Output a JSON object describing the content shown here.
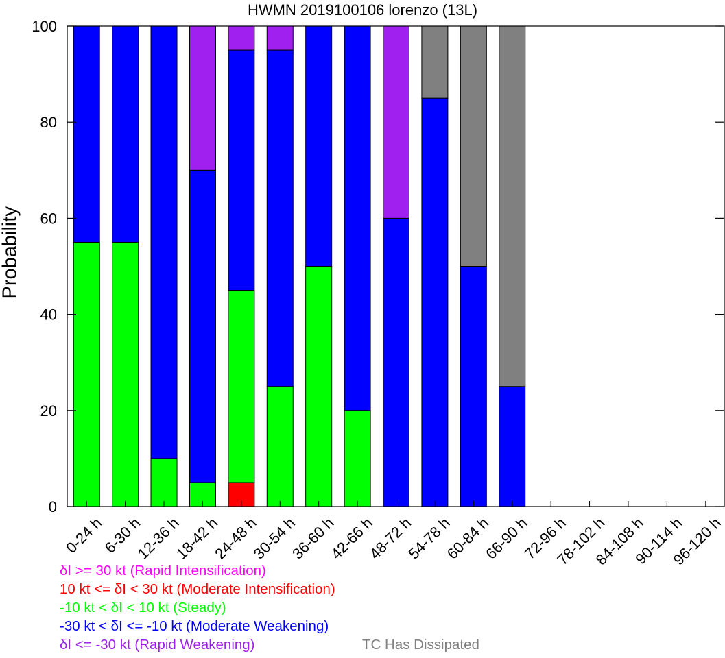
{
  "chart_data": {
    "type": "bar",
    "stacked": true,
    "title": "HWMN 2019100106 lorenzo (13L)",
    "xlabel": "",
    "ylabel": "Probability",
    "ylim": [
      0,
      100
    ],
    "yticks": [
      0,
      20,
      40,
      60,
      80,
      100
    ],
    "grid": false,
    "categories": [
      "0-24 h",
      "6-30 h",
      "12-36 h",
      "18-42 h",
      "24-48 h",
      "30-54 h",
      "36-60 h",
      "42-66 h",
      "48-72 h",
      "54-78 h",
      "60-84 h",
      "66-90 h",
      "72-96 h",
      "78-102 h",
      "84-108 h",
      "90-114 h",
      "96-120 h"
    ],
    "series": [
      {
        "name": "10 kt <= δI < 30 kt (Moderate Intensification)",
        "color": "#ff0000",
        "values": [
          0,
          0,
          0,
          0,
          5,
          0,
          0,
          0,
          0,
          0,
          0,
          0,
          0,
          0,
          0,
          0,
          0
        ]
      },
      {
        "name": "-10 kt < δI < 10 kt (Steady)",
        "color": "#00ff00",
        "values": [
          55,
          55,
          10,
          5,
          40,
          25,
          50,
          20,
          0,
          0,
          0,
          0,
          0,
          0,
          0,
          0,
          0
        ]
      },
      {
        "name": "-30 kt < δI <= -10 kt (Moderate Weakening)",
        "color": "#0000ff",
        "values": [
          45,
          45,
          90,
          65,
          50,
          70,
          50,
          80,
          60,
          85,
          50,
          25,
          0,
          0,
          0,
          0,
          0
        ]
      },
      {
        "name": "δI >= 30 kt (Rapid Intensification)",
        "color": "#ff00ff",
        "values": [
          0,
          0,
          0,
          0,
          0,
          0,
          0,
          0,
          0,
          0,
          0,
          0,
          0,
          0,
          0,
          0,
          0
        ]
      },
      {
        "name": "δI <= -30 kt (Rapid Weakening)",
        "color": "#a020f0",
        "values": [
          0,
          0,
          0,
          30,
          5,
          5,
          0,
          0,
          40,
          0,
          0,
          0,
          0,
          0,
          0,
          0,
          0
        ]
      },
      {
        "name": "TC Has Dissipated",
        "color": "#808080",
        "values": [
          0,
          0,
          0,
          0,
          0,
          0,
          0,
          0,
          0,
          15,
          50,
          75,
          0,
          0,
          0,
          0,
          0
        ]
      }
    ]
  },
  "legend": {
    "ri": {
      "text": "δI >= 30 kt (Rapid Intensification)",
      "color": "#ff00ff"
    },
    "mi": {
      "text": "10 kt <= δI < 30 kt (Moderate Intensification)",
      "color": "#ff0000"
    },
    "steady": {
      "text": "-10 kt < δI < 10 kt (Steady)",
      "color": "#00ff00"
    },
    "mw": {
      "text": "-30 kt < δI <= -10 kt (Moderate Weakening)",
      "color": "#0000ff"
    },
    "rw": {
      "text": "δI <= -30 kt (Rapid Weakening)",
      "color": "#a020f0"
    },
    "dissipated": {
      "text": "TC Has Dissipated",
      "color": "#808080"
    }
  }
}
